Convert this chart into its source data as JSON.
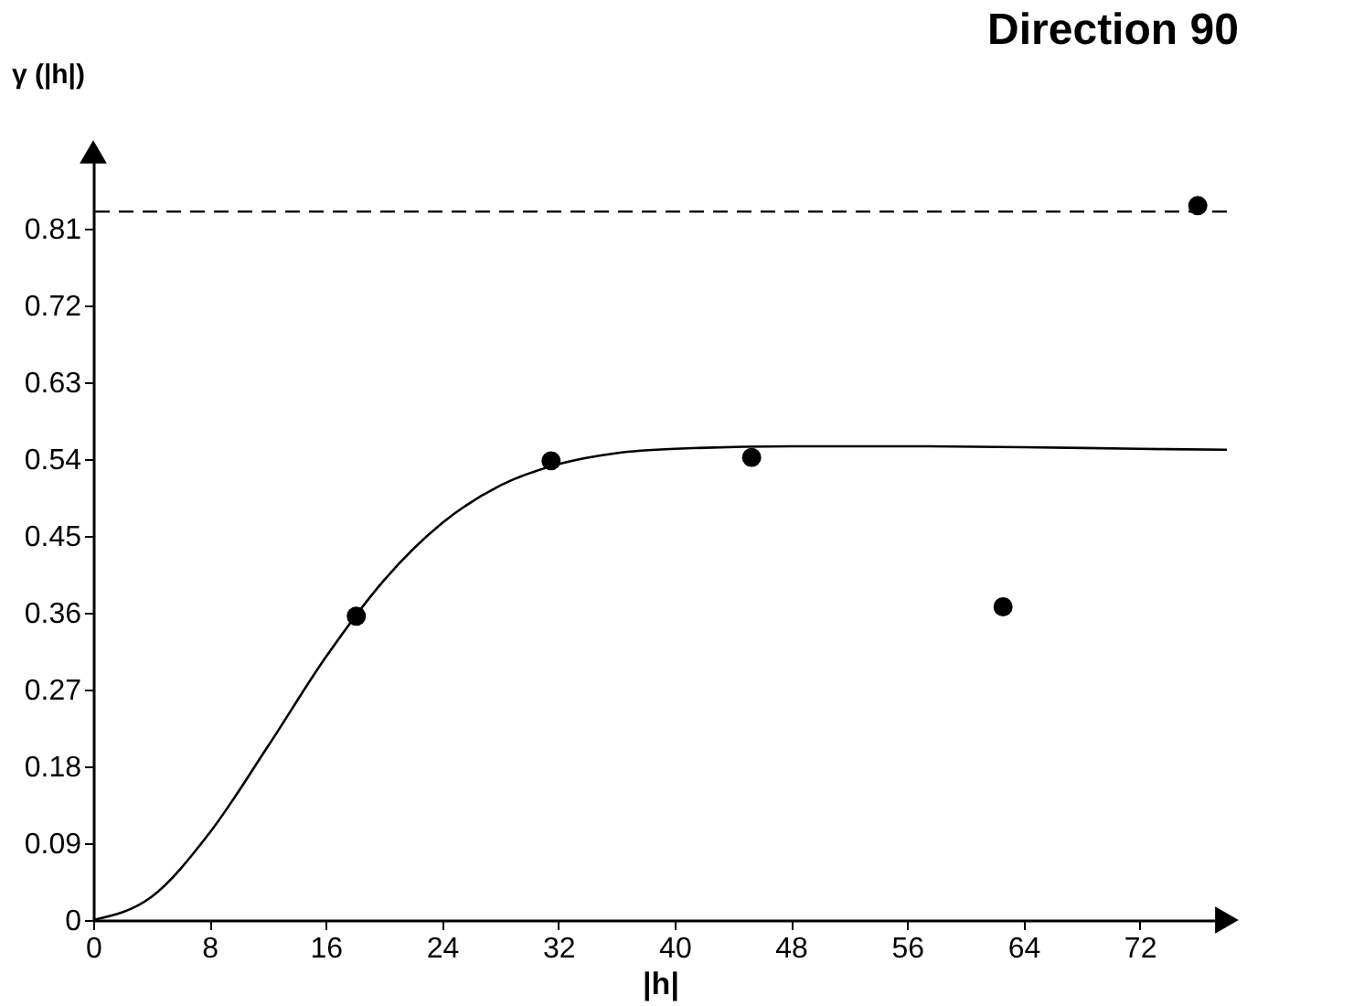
{
  "chart_data": {
    "type": "scatter",
    "title": "Direction 90",
    "xlabel": "|h|",
    "ylabel": "γ (|h|)",
    "xlim": [
      0,
      78
    ],
    "ylim": [
      0,
      0.9
    ],
    "xticks": [
      0,
      8,
      16,
      24,
      32,
      40,
      48,
      56,
      64,
      72
    ],
    "yticks": [
      0,
      0.09,
      0.18,
      0.27,
      0.36,
      0.45,
      0.54,
      0.63,
      0.72,
      0.81
    ],
    "grid": false,
    "series": [
      {
        "marker": "circle",
        "color": "#000000",
        "x": [
          18.1,
          31.5,
          45.3,
          62.6,
          76
        ],
        "values": [
          0.356,
          0.538,
          0.542,
          0.367,
          0.837
        ]
      },
      {
        "type": "line",
        "line_style": "solid",
        "color": "#000000",
        "x": [
          0,
          4,
          8,
          12,
          16,
          20,
          24,
          28,
          32,
          36,
          40,
          48,
          56,
          64,
          72,
          78
        ],
        "values": [
          0,
          0.027,
          0.102,
          0.203,
          0.308,
          0.398,
          0.465,
          0.509,
          0.534,
          0.547,
          0.552,
          0.555,
          0.555,
          0.554,
          0.552,
          0.551
        ]
      }
    ],
    "ref_lines": [
      {
        "axis": "y",
        "value": 0.83,
        "line_style": "dashed",
        "color": "#000000"
      }
    ]
  }
}
